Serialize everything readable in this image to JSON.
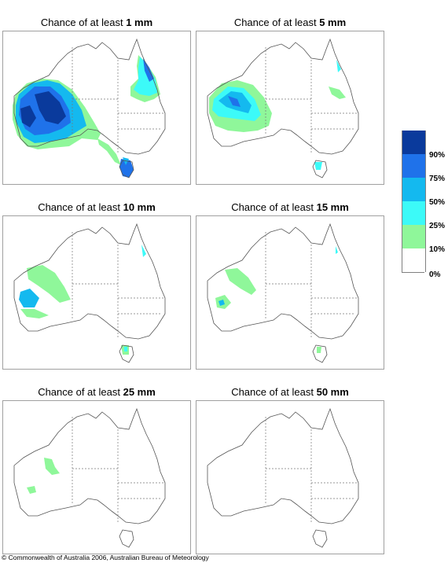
{
  "panels": [
    {
      "title_prefix": "Chance of at least ",
      "amount": "1 mm"
    },
    {
      "title_prefix": "Chance of at least ",
      "amount": "5 mm"
    },
    {
      "title_prefix": "Chance of at least ",
      "amount": "10 mm"
    },
    {
      "title_prefix": "Chance of at least ",
      "amount": "15 mm"
    },
    {
      "title_prefix": "Chance of at least ",
      "amount": "25 mm"
    },
    {
      "title_prefix": "Chance of at least ",
      "amount": "50 mm"
    }
  ],
  "legend": {
    "bins": [
      {
        "color": "#0a3a9c"
      },
      {
        "color": "#1f72ea"
      },
      {
        "color": "#14b9ef"
      },
      {
        "color": "#3cfaf8"
      },
      {
        "color": "#8ff79a"
      },
      {
        "color": "#ffffff"
      }
    ],
    "labels": [
      "90%",
      "75%",
      "50%",
      "25%",
      "10%",
      "0%"
    ]
  },
  "copyright": "© Commonwealth of Australia 2006, Australian Bureau of Meteorology"
}
